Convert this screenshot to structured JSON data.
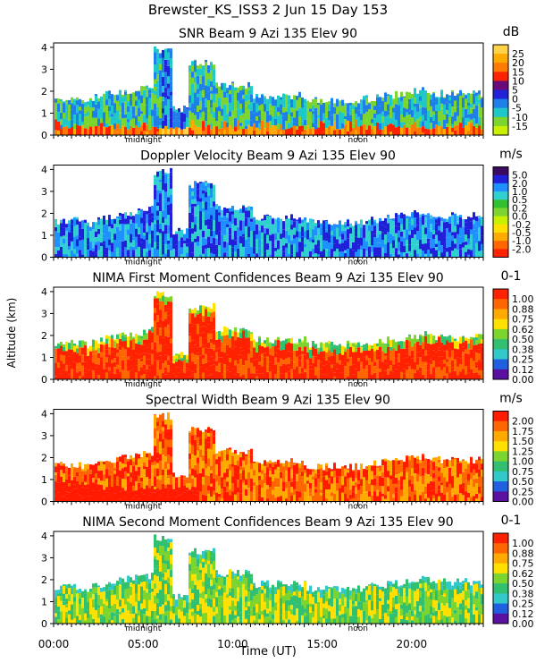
{
  "header": {
    "line1": "Brewster_KS_ISS3    2 Jun 15 Day 153"
  },
  "chart_data": {
    "type": "heatmap",
    "x_axis": {
      "label": "Time (UT)",
      "range_hours": [
        0,
        24
      ],
      "ticks": [
        {
          "value": 0,
          "label": "00:00"
        },
        {
          "value": 5,
          "label": "05:00"
        },
        {
          "value": 10,
          "label": "10:00"
        },
        {
          "value": 15,
          "label": "15:00"
        },
        {
          "value": 20,
          "label": "20:00"
        }
      ],
      "markers": [
        {
          "value": 5,
          "label": "midnight"
        },
        {
          "value": 17,
          "label": "noon"
        }
      ]
    },
    "y_axis": {
      "label": "Altitude (km)",
      "range": [
        0,
        4.2
      ],
      "ticks": [
        0,
        1,
        2,
        3,
        4
      ]
    },
    "panels": [
      {
        "title": "SNR Beam 9 Azi 135 Elev 90",
        "unit": "dB",
        "scale_labels": [
          "25",
          "20",
          "15",
          "10",
          "5",
          "0",
          "-5",
          "-10",
          "-15"
        ],
        "colors": [
          "#ffd24a",
          "#ffaa00",
          "#ff7a00",
          "#ff2200",
          "#6a0a78",
          "#2222d8",
          "#1e7fe8",
          "#1ec8c8",
          "#7cd42e",
          "#c8f000"
        ]
      },
      {
        "title": "Doppler Velocity Beam 9 Azi 135 Elev 90",
        "unit": "m/s",
        "scale_labels": [
          "5.0",
          "2.0",
          "1.0",
          "0.5",
          "0.2",
          "0.0",
          "-0.2",
          "-0.5",
          "-1.0",
          "-2.0"
        ],
        "colors": [
          "#3a0a60",
          "#2020d8",
          "#1e90ff",
          "#30d0d0",
          "#30c030",
          "#7cd42e",
          "#c8f000",
          "#ffe000",
          "#ffaa00",
          "#ff6600",
          "#ff2200"
        ]
      },
      {
        "title": "NIMA First Moment Confidences Beam 9 Azi 135 Elev 90",
        "unit": "0-1",
        "scale_labels": [
          "1.00",
          "0.88",
          "0.75",
          "0.62",
          "0.50",
          "0.38",
          "0.25",
          "0.12",
          "0.00"
        ],
        "colors": [
          "#ff2200",
          "#ff6600",
          "#ffaa00",
          "#ffe000",
          "#7cd42e",
          "#30c070",
          "#30c8c8",
          "#2060e0",
          "#5a10a0"
        ]
      },
      {
        "title": "Spectral Width Beam 9 Azi 135 Elev 90",
        "unit": "m/s",
        "scale_labels": [
          "2.00",
          "1.75",
          "1.50",
          "1.25",
          "1.00",
          "0.75",
          "0.50",
          "0.25",
          "0.00"
        ],
        "colors": [
          "#ff1a00",
          "#ff6600",
          "#ffaa00",
          "#ffe000",
          "#7cd42e",
          "#30c070",
          "#30c8c8",
          "#2060e0",
          "#5a10a0"
        ]
      },
      {
        "title": "NIMA Second Moment Confidences Beam 9 Azi 135 Elev 90",
        "unit": "0-1",
        "scale_labels": [
          "1.00",
          "0.88",
          "0.75",
          "0.62",
          "0.50",
          "0.38",
          "0.25",
          "0.12",
          "0.00"
        ],
        "colors": [
          "#ff2200",
          "#ff6600",
          "#ffaa00",
          "#ffe000",
          "#7cd42e",
          "#30c070",
          "#30c8c8",
          "#2060e0",
          "#5a10a0"
        ]
      }
    ]
  }
}
